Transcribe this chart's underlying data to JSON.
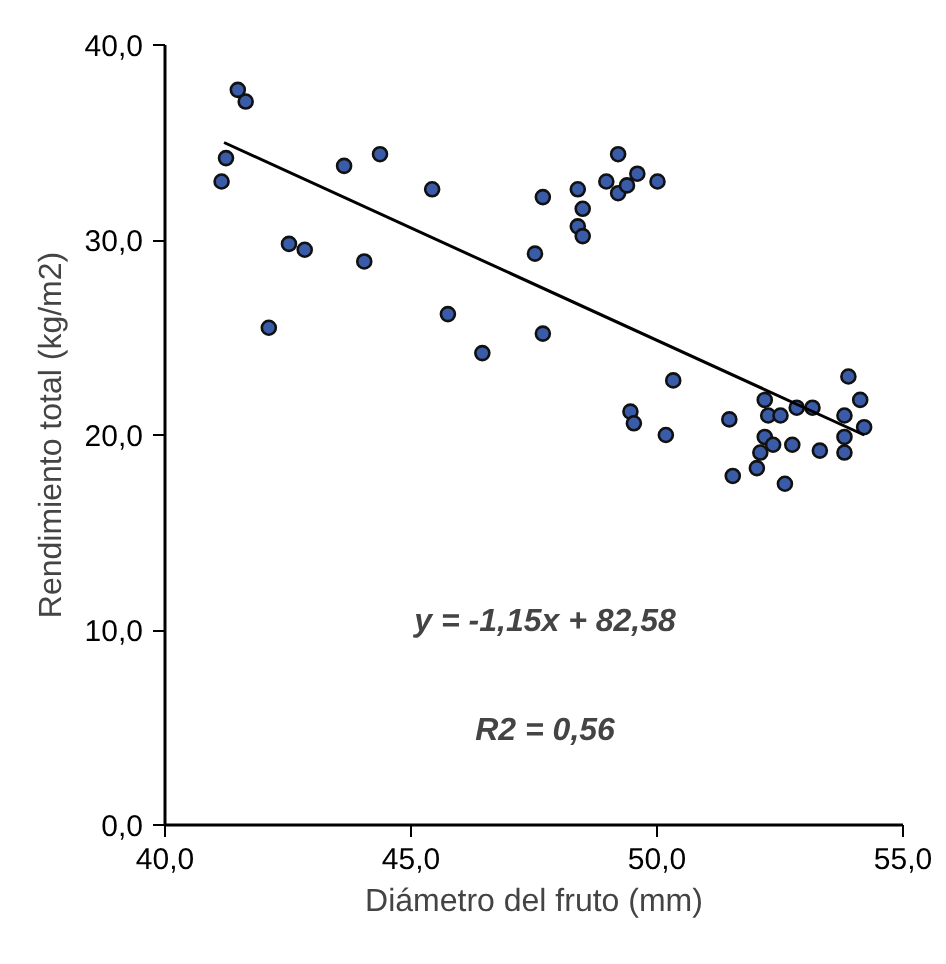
{
  "chart_data": {
    "type": "scatter",
    "xlabel": "Diámetro del fruto (mm)",
    "ylabel": "Rendimiento total (kg/m2)",
    "xlim": [
      40,
      55
    ],
    "ylim": [
      0,
      40
    ],
    "xticks": [
      {
        "value": 40,
        "label": "40,0"
      },
      {
        "value": 45,
        "label": "45,0"
      },
      {
        "value": 50,
        "label": "50,0"
      },
      {
        "value": 55,
        "label": "55,0"
      }
    ],
    "yticks": [
      {
        "value": 0,
        "label": "0,0"
      },
      {
        "value": 10,
        "label": "10,0"
      },
      {
        "value": 20,
        "label": "20,0"
      },
      {
        "value": 30,
        "label": "30,0"
      },
      {
        "value": 40,
        "label": "40,0"
      }
    ],
    "grid": false,
    "series": [
      {
        "marker": "circle",
        "color": "#3a5ba8",
        "x": [
          41.15,
          41.24,
          41.48,
          41.64,
          42.11,
          42.52,
          42.84,
          43.64,
          44.05,
          44.37,
          45.43,
          45.75,
          46.45,
          47.52,
          47.68,
          47.68,
          48.39,
          48.49,
          48.39,
          48.49,
          48.97,
          49.21,
          49.21,
          49.39,
          49.6,
          50.01,
          49.46,
          49.53,
          50.18,
          50.33,
          51.47,
          51.54,
          52.03,
          52.1,
          52.19,
          52.26,
          52.19,
          52.36,
          52.51,
          52.6,
          52.75,
          52.84,
          53.16,
          53.31,
          53.81,
          53.81,
          53.81,
          53.89,
          54.13,
          54.21
        ],
        "values": [
          33.0,
          34.2,
          37.7,
          37.1,
          25.5,
          29.8,
          29.5,
          33.8,
          28.9,
          34.4,
          32.6,
          26.2,
          24.2,
          29.3,
          32.2,
          25.2,
          32.6,
          31.6,
          30.7,
          30.2,
          33.0,
          34.4,
          32.4,
          32.8,
          33.4,
          33.0,
          21.2,
          20.6,
          20.0,
          22.8,
          20.8,
          17.9,
          18.3,
          19.1,
          21.8,
          21.0,
          19.9,
          19.5,
          21.0,
          17.5,
          19.5,
          21.4,
          21.4,
          19.2,
          21.0,
          19.9,
          19.1,
          23.0,
          21.8,
          20.4
        ]
      },
      {
        "type": "line",
        "color": "#000000",
        "x": [
          41.2,
          54.21
        ],
        "values": [
          35.0,
          20.0
        ]
      }
    ],
    "annotations": [
      "y = -1,15x + 82,58",
      "R2 = 0,56"
    ]
  }
}
